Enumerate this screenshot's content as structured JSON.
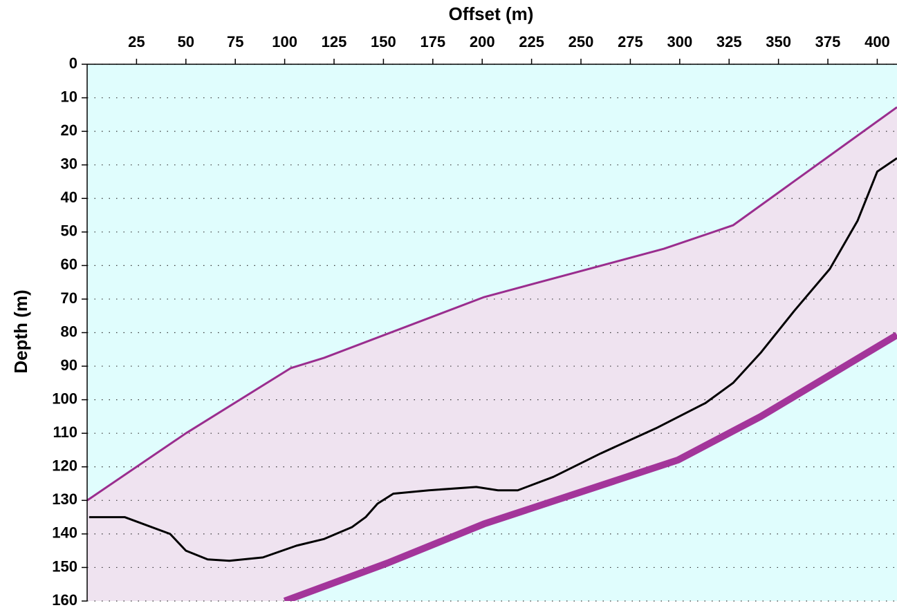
{
  "chart_data": {
    "type": "line",
    "title": "Offset (m)",
    "y_label": "Depth (m)",
    "xlim": [
      0,
      410
    ],
    "xticks": [
      25,
      50,
      75,
      100,
      125,
      150,
      175,
      200,
      225,
      250,
      275,
      300,
      325,
      350,
      375,
      400
    ],
    "ylim": [
      160,
      0
    ],
    "yticks": [
      0,
      10,
      20,
      30,
      40,
      50,
      60,
      70,
      80,
      90,
      100,
      110,
      120,
      130,
      140,
      150,
      160
    ],
    "grid": true,
    "background": "#e0fdfd",
    "series": [
      {
        "color": "#9a2d8e",
        "width": 3,
        "x": [
          0,
          50,
          103,
          120,
          201,
          292,
          327,
          410
        ],
        "values": [
          130,
          110,
          90.6,
          87.5,
          69.4,
          55,
          48,
          12.8
        ]
      },
      {
        "color": "#a3359a",
        "width": 10,
        "x": [
          100,
          152,
          201,
          299,
          341,
          410
        ],
        "values": [
          160,
          148.7,
          137,
          118,
          105,
          80.7
        ]
      },
      {
        "color": "#000000",
        "width": 3,
        "x": [
          1,
          19,
          42,
          50,
          61,
          72,
          89,
          106,
          120,
          134,
          141,
          147,
          155,
          173,
          197,
          208,
          218,
          236,
          260,
          288,
          313,
          327,
          341,
          358,
          376,
          390,
          400,
          410
        ],
        "values": [
          135,
          135,
          140,
          145,
          147.6,
          148,
          147,
          143.5,
          141.5,
          138,
          135,
          131,
          128,
          127,
          126,
          127,
          127,
          123,
          116,
          108.5,
          101,
          95,
          86,
          73.5,
          61,
          46.7,
          32,
          28
        ]
      }
    ]
  }
}
